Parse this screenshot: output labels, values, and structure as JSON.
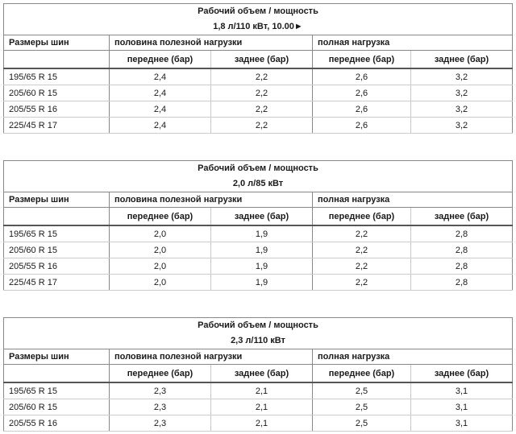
{
  "tables": [
    {
      "heading": "Рабочий объем / мощность",
      "power": "1,8 л/110 кВт, 10.00►",
      "size_header": "Размеры шин",
      "half_load": "половина полезной нагрузки",
      "full_load": "полная нагрузка",
      "front": "переднее (бар)",
      "rear": "заднее (бар)",
      "rows": [
        [
          "195/65 R 15",
          "2,4",
          "2,2",
          "2,6",
          "3,2"
        ],
        [
          "205/60 R 15",
          "2,4",
          "2,2",
          "2,6",
          "3,2"
        ],
        [
          "205/55 R 16",
          "2,4",
          "2,2",
          "2,6",
          "3,2"
        ],
        [
          "225/45 R 17",
          "2,4",
          "2,2",
          "2,6",
          "3,2"
        ]
      ]
    },
    {
      "heading": "Рабочий объем / мощность",
      "power": "2,0 л/85 кВт",
      "size_header": "Размеры шин",
      "half_load": "половина полезной нагрузки",
      "full_load": "полная нагрузка",
      "front": "переднее (бар)",
      "rear": "заднее (бар)",
      "rows": [
        [
          "195/65 R 15",
          "2,0",
          "1,9",
          "2,2",
          "2,8"
        ],
        [
          "205/60 R 15",
          "2,0",
          "1,9",
          "2,2",
          "2,8"
        ],
        [
          "205/55 R 16",
          "2,0",
          "1,9",
          "2,2",
          "2,8"
        ],
        [
          "225/45 R 17",
          "2,0",
          "1,9",
          "2,2",
          "2,8"
        ]
      ]
    },
    {
      "heading": "Рабочий объем / мощность",
      "power": "2,3 л/110 кВт",
      "size_header": "Размеры шин",
      "half_load": "половина полезной нагрузки",
      "full_load": "полная нагрузка",
      "front": "переднее (бар)",
      "rear": "заднее (бар)",
      "rows": [
        [
          "195/65 R 15",
          "2,3",
          "2,1",
          "2,5",
          "3,1"
        ],
        [
          "205/60 R 15",
          "2,3",
          "2,1",
          "2,5",
          "3,1"
        ],
        [
          "205/55 R 16",
          "2,3",
          "2,1",
          "2,5",
          "3,1"
        ]
      ]
    }
  ]
}
